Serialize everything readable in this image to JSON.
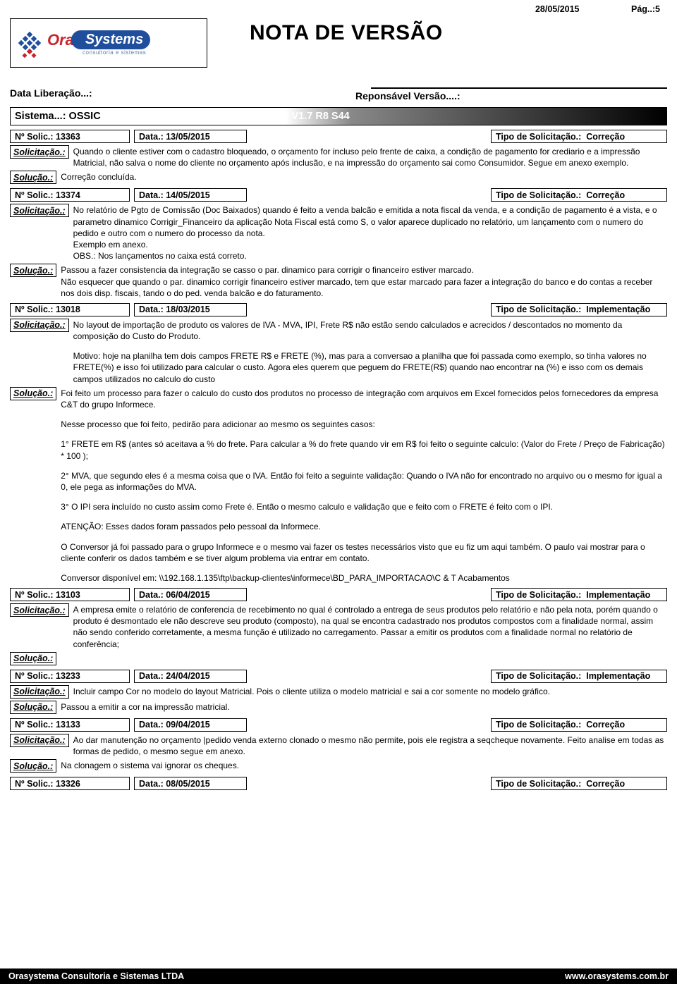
{
  "meta": {
    "date": "28/05/2015",
    "page_label": "Pág..:5",
    "title": "NOTA DE VERSÃO",
    "logo_ora": "Ora",
    "logo_systems": "Systems",
    "logo_sub": "consultoria e sistemas",
    "data_lib_label": "Data Liberação...:",
    "resp_label": "Reponsável Versão....:",
    "sistema_label": "Sistema...: OSSIC",
    "versao_label": "Versão...: V1.7 R8 S44"
  },
  "labels": {
    "no_solic": "Nº Solic.:",
    "data": "Data.:",
    "tipo": "Tipo de Solicitação.:",
    "solicitacao": "Solicitação.:",
    "solucao": "Solução.:"
  },
  "entries": [
    {
      "num": "13363",
      "date": "13/05/2015",
      "tipo": "Correção",
      "solicitacao": [
        "Quando o cliente estiver com o cadastro bloqueado, o orçamento for incluso pelo frente de caixa, a condição de pagamento for crediario e a impressão Matricial, não salva o nome do cliente no orçamento após inclusão, e na impressão do orçamento sai como Consumidor. Segue em anexo exemplo."
      ],
      "solucao": [
        "Correção concluída."
      ]
    },
    {
      "num": "13374",
      "date": "14/05/2015",
      "tipo": "Correção",
      "solicitacao": [
        "No relatório de Pgto de Comissão (Doc Baixados) quando é feito a venda balcão e emitida a nota fiscal da venda, e a condição de pagamento é a vista, e  o parametro dinamico Corrigir_Financeiro da aplicação Nota Fiscal está como S, o valor aparece duplicado no relatório, um lançamento com o numero do pedido e outro com o numero do processo da nota.\nExemplo em anexo.\nOBS.: Nos lançamentos no caixa está correto."
      ],
      "solucao": [
        "Passou a fazer consistencia da integração se casso o par. dinamico para corrigir o financeiro estiver marcado.\nNão esquecer que quando o par. dinamico corrigir financeiro estiver marcado, tem que estar marcado para fazer a integração do banco e do contas a receber nos dois disp. fiscais, tando o do ped. venda balcão e do faturamento."
      ]
    },
    {
      "num": "13018",
      "date": "18/03/2015",
      "tipo": "Implementação",
      "solicitacao": [
        "No layout de importação de produto os valores de IVA - MVA, IPI, Frete R$ não estão sendo calculados e acrecidos / descontados no momento da composição do Custo do Produto.",
        "Motivo: hoje na planilha tem dois campos FRETE R$ e FRETE (%), mas para a conversao a planilha que foi passada como exemplo, so tinha valores no FRETE(%) e isso foi utilizado para calcular o custo. Agora eles querem que peguem do FRETE(R$)  quando nao encontrar na (%) e isso com os demais campos utilizados no calculo do custo"
      ],
      "solucao": [
        "Foi feito um processo para fazer o calculo do custo dos produtos no processo de integração com arquivos em Excel fornecidos pelos fornecedores da empresa C&T do grupo Informece.",
        "Nesse processo que foi feito, pedirão para adicionar ao mesmo os seguintes casos:",
        "1° FRETE em R$ (antes só aceitava a % do frete. Para calcular a % do frete quando vir em R$ foi feito o seguinte calculo: (Valor do Frete / Preço de Fabricação) * 100 );",
        "2° MVA, que segundo eles é a mesma coisa que o IVA. Então foi feito a seguinte validação: Quando o IVA não for encontrado no arquivo ou o mesmo for igual a 0, ele pega as informações do MVA.",
        "3° O IPI sera incluído no custo assim como Frete é. Então o mesmo calculo e validação que e feito com o FRETE é feito com o IPI.",
        "ATENÇÃO: Esses dados foram passados pelo pessoal da Informece.",
        "O Conversor já foi passado para o grupo Informece e o mesmo vai fazer os testes necessários visto que eu fiz um aqui também. O paulo vai mostrar para o cliente conferir os dados também e se tiver algum problema via entrar em contato.",
        "Conversor disponível em: \\\\192.168.1.135\\ftp\\backup-clientes\\informece\\BD_PARA_IMPORTACAO\\C & T Acabamentos"
      ]
    },
    {
      "num": "13103",
      "date": "06/04/2015",
      "tipo": "Implementação",
      "solicitacao": [
        "A empresa emite o relatório de conferencia de recebimento no qual é controlado a entrega de seus produtos pelo relatório e não pela nota, porém quando o produto é desmontado ele não descreve seu produto (composto), na qual se encontra cadastrado nos produtos compostos com a finalidade normal, assim não sendo conferido corretamente, a mesma função é utilizado no carregamento. Passar a emitir os produtos com a finalidade normal no relatório de conferência;"
      ],
      "solucao": [
        ""
      ]
    },
    {
      "num": "13233",
      "date": "24/04/2015",
      "tipo": "Implementação",
      "solicitacao": [
        "Incluir campo Cor no modelo do layout Matricial. Pois o cliente utiliza o modelo matricial e sai a cor somente no modelo gráfico."
      ],
      "solucao": [
        "Passou a emitir a cor na impressão matricial."
      ]
    },
    {
      "num": "13133",
      "date": "09/04/2015",
      "tipo": "Correção",
      "solicitacao": [
        "Ao dar manutenção no orçamento |pedido venda externo clonado o mesmo não permite, pois ele registra a seqcheque novamente. Feito analise em todas as formas de pedido, o mesmo segue em anexo."
      ],
      "solucao": [
        "Na clonagem o sistema vai ignorar os cheques."
      ]
    },
    {
      "num": "13326",
      "date": "08/05/2015",
      "tipo": "Correção",
      "solicitacao": null,
      "solucao": null
    }
  ],
  "footer": {
    "left": "Orasystema Consultoria e Sistemas LTDA",
    "right": "www.orasystems.com.br"
  }
}
